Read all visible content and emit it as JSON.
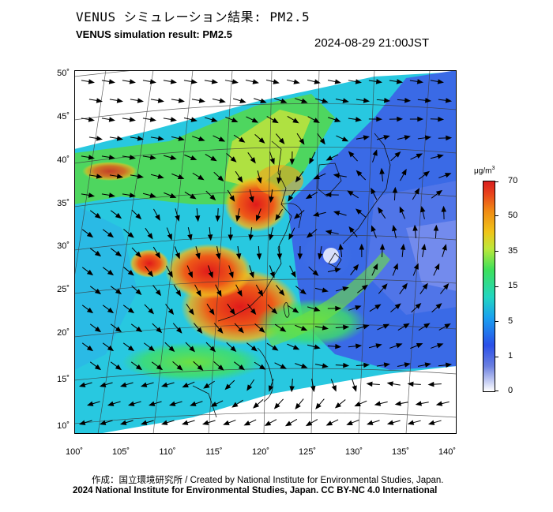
{
  "header": {
    "title_jp": "VENUS シミュレーション結果: PM2.5",
    "title_en": "VENUS simulation result: PM2.5",
    "datetime": "2024-08-29 21:00JST"
  },
  "map": {
    "latitude_labels": [
      "50˚",
      "45˚",
      "40˚",
      "35˚",
      "30˚",
      "25˚",
      "20˚",
      "15˚",
      "10˚"
    ],
    "longitude_labels": [
      "100˚",
      "105˚",
      "110˚",
      "115˚",
      "120˚",
      "125˚",
      "130˚",
      "135˚",
      "140˚"
    ],
    "typhoon_center": {
      "lon": 132,
      "lat": 31
    }
  },
  "colorbar": {
    "unit": "μg/m",
    "unit_sup": "3",
    "ticks": [
      "70",
      "50",
      "35",
      "15",
      "5",
      "1",
      "0"
    ],
    "colors": [
      "#ffffff",
      "#2a4fe8",
      "#1aa0f0",
      "#3ee05a",
      "#f0c418",
      "#e8441c",
      "#d81e1e"
    ]
  },
  "credits": {
    "line1": "作成：国立環境研究所 / Created by National Institute for Environmental Studies, Japan.",
    "line2": "2024 National Institute for Environmental Studies, Japan. CC BY-NC 4.0 International"
  }
}
